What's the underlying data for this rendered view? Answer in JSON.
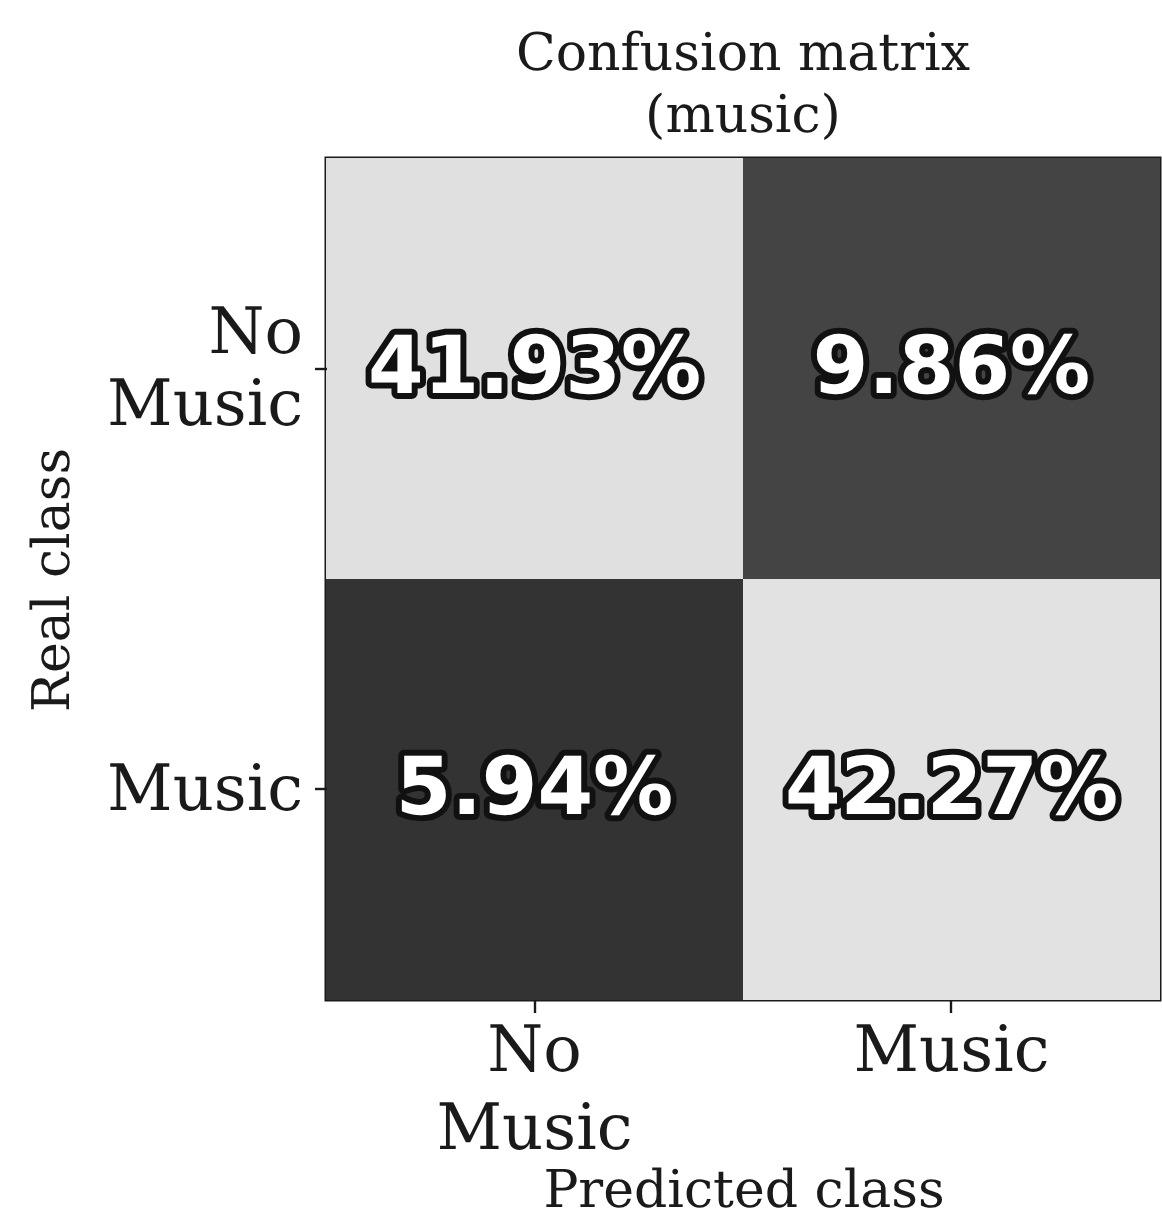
{
  "chart_data": {
    "type": "heatmap",
    "title": "Confusion matrix (music)",
    "xlabel": "Predicted class",
    "ylabel": "Real class",
    "categories": [
      "No Music",
      "Music"
    ],
    "y_categories": [
      "No Music",
      "Music"
    ],
    "cells": [
      [
        41.93,
        9.86
      ],
      [
        5.94,
        42.27
      ]
    ],
    "cell_labels": [
      [
        "41.93%",
        "9.86%"
      ],
      [
        "5.94%",
        "42.27%"
      ]
    ]
  }
}
